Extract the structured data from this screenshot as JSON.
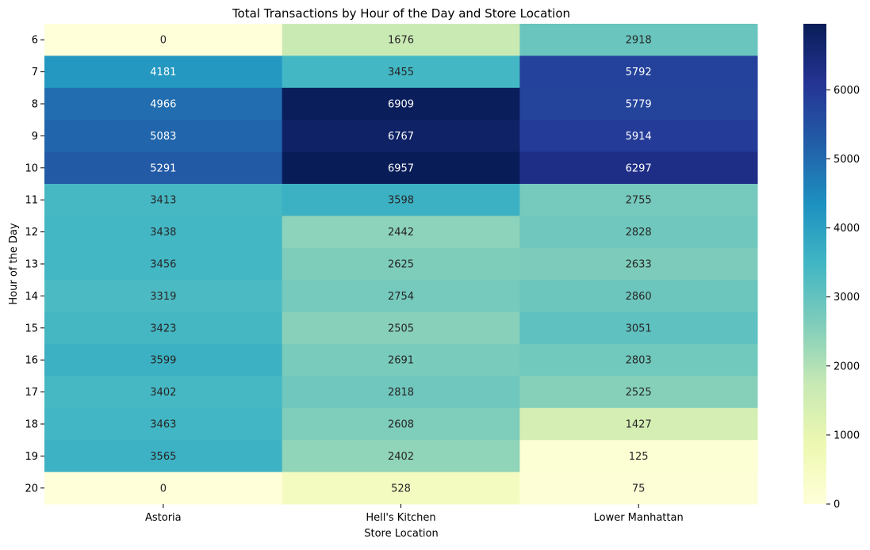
{
  "chart_data": {
    "type": "heatmap",
    "title": "Total Transactions by Hour of the Day and Store Location",
    "xlabel": "Store Location",
    "ylabel": "Hour of the Day",
    "columns": [
      "Astoria",
      "Hell's Kitchen",
      "Lower Manhattan"
    ],
    "rows": [
      "6",
      "7",
      "8",
      "9",
      "10",
      "11",
      "12",
      "13",
      "14",
      "15",
      "16",
      "17",
      "18",
      "19",
      "20"
    ],
    "values": [
      [
        0,
        1676,
        2918
      ],
      [
        4181,
        3455,
        5792
      ],
      [
        4966,
        6909,
        5779
      ],
      [
        5083,
        6767,
        5914
      ],
      [
        5291,
        6957,
        6297
      ],
      [
        3413,
        3598,
        2755
      ],
      [
        3438,
        2442,
        2828
      ],
      [
        3456,
        2625,
        2633
      ],
      [
        3319,
        2754,
        2860
      ],
      [
        3423,
        2505,
        3051
      ],
      [
        3599,
        2691,
        2803
      ],
      [
        3402,
        2818,
        2525
      ],
      [
        3463,
        2608,
        1427
      ],
      [
        3565,
        2402,
        125
      ],
      [
        0,
        528,
        75
      ]
    ],
    "colormap": "YlGnBu",
    "vmin": 0,
    "vmax": 6957,
    "colorbar_ticks": [
      0,
      1000,
      2000,
      3000,
      4000,
      5000,
      6000
    ],
    "annotations": true
  }
}
